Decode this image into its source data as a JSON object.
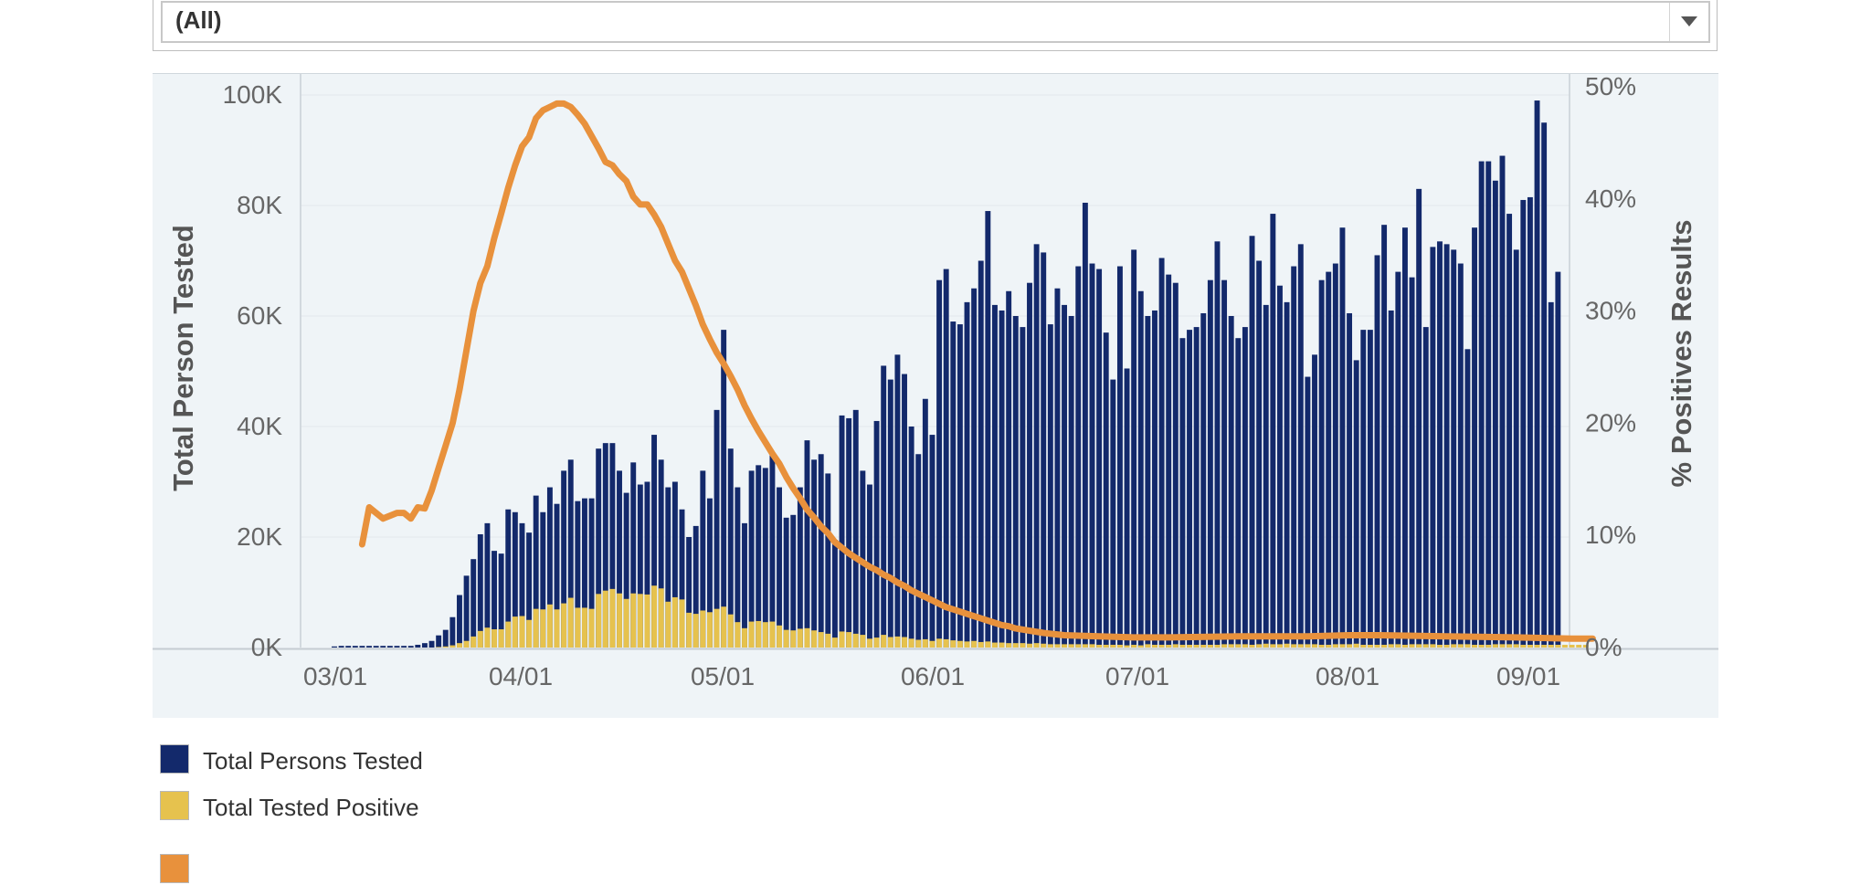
{
  "filter": {
    "value": "(All)",
    "icon": "chevron-down-icon"
  },
  "legend": [
    {
      "label": "Total Persons Tested",
      "color": "#13296b"
    },
    {
      "label": "Total Tested Positive",
      "color": "#e6c24e"
    },
    {
      "label": "",
      "color": "#e8913c"
    }
  ],
  "chart_data": {
    "type": "bar",
    "xlabel": "",
    "ylabel": "Total Person Tested",
    "y2label": "% Positives Results",
    "x_ticks": [
      "03/01",
      "04/01",
      "05/01",
      "06/01",
      "07/01",
      "08/01",
      "09/01"
    ],
    "y_ticks": [
      "0K",
      "20K",
      "40K",
      "60K",
      "80K",
      "100K"
    ],
    "y2_ticks": [
      "0%",
      "10%",
      "20%",
      "30%",
      "40%",
      "50%"
    ],
    "ylim": [
      0,
      100000
    ],
    "y2lim": [
      0,
      50
    ],
    "x_start": "03/01",
    "grid": true,
    "colors": {
      "tested": "#13296b",
      "positive": "#e6c24e",
      "rate": "#e8913c"
    },
    "series": [
      {
        "name": "Total Persons Tested",
        "kind": "bar",
        "values": [
          200,
          300,
          300,
          300,
          300,
          300,
          300,
          300,
          300,
          300,
          300,
          300,
          500,
          800,
          1200,
          2200,
          3200,
          5500,
          9500,
          13000,
          16000,
          20500,
          22500,
          17500,
          17000,
          25000,
          24500,
          22500,
          20800,
          27500,
          24500,
          29000,
          26000,
          32000,
          34000,
          26500,
          27000,
          27000,
          36000,
          37000,
          37000,
          32000,
          28000,
          33500,
          29500,
          30000,
          38500,
          34000,
          29000,
          30000,
          25000,
          20000,
          22000,
          32000,
          27000,
          43000,
          57500,
          36000,
          29000,
          22500,
          32000,
          33000,
          32500,
          35000,
          29000,
          23500,
          24000,
          29000,
          37500,
          34000,
          35000,
          31500,
          19500,
          42000,
          41500,
          43000,
          32000,
          29500,
          41000,
          51000,
          48500,
          53000,
          49500,
          40000,
          35000,
          45000,
          38500,
          66500,
          68500,
          59000,
          58500,
          62500,
          65000,
          70000,
          79000,
          62000,
          61000,
          64500,
          60000,
          58000,
          66000,
          73000,
          71500,
          58500,
          65000,
          62000,
          60000,
          69000,
          80500,
          69500,
          68500,
          57000,
          48500,
          69000,
          50500,
          72000,
          64500,
          60000,
          61000,
          70500,
          67500,
          66000,
          56000,
          57500,
          58000,
          60500,
          66500,
          73500,
          66500,
          60000,
          56000,
          58000,
          74500,
          70000,
          62000,
          78500,
          65500,
          62500,
          69000,
          73000,
          49000,
          53000,
          66500,
          68000,
          69500,
          76000,
          60500,
          52000,
          57500,
          57500,
          71000,
          76500,
          61000,
          68000,
          76000,
          67000,
          83000,
          58000,
          72500,
          73500,
          73000,
          72000,
          69500,
          54000,
          76000,
          88000,
          88000,
          84500,
          89000,
          78500,
          72000,
          81000,
          81500,
          99000,
          95000,
          62500,
          68000
        ]
      },
      {
        "name": "Total Tested Positive",
        "kind": "bar",
        "values": [
          0,
          0,
          0,
          0,
          0,
          0,
          0,
          0,
          0,
          0,
          0,
          0,
          0,
          0,
          0,
          100,
          200,
          400,
          800,
          1200,
          2000,
          3000,
          3600,
          3300,
          3300,
          4700,
          5600,
          5700,
          5000,
          7000,
          6900,
          7800,
          6900,
          8000,
          9000,
          7200,
          7200,
          7000,
          9700,
          10300,
          10600,
          9800,
          8800,
          9800,
          9700,
          9600,
          11200,
          10700,
          8300,
          9100,
          8700,
          6300,
          6100,
          6700,
          6400,
          7000,
          7400,
          6000,
          4600,
          3500,
          4700,
          4800,
          4600,
          4700,
          4000,
          3200,
          3100,
          3400,
          3500,
          3100,
          2800,
          2500,
          1800,
          2900,
          2800,
          2500,
          2300,
          1600,
          1800,
          2300,
          1900,
          2000,
          1900,
          1600,
          1400,
          1500,
          1200,
          1600,
          1500,
          1300,
          1200,
          1100,
          1200,
          1000,
          1100,
          900,
          900,
          800,
          800,
          800,
          700,
          800,
          700,
          600,
          600,
          600,
          600,
          600,
          600,
          600,
          500,
          500,
          500,
          500,
          400,
          500,
          400,
          600,
          500,
          500,
          500,
          600,
          500,
          500,
          500,
          500,
          500,
          500,
          600,
          600,
          600,
          600,
          500,
          600,
          700,
          600,
          600,
          700,
          600,
          600,
          600,
          600,
          500,
          500,
          600,
          600,
          600,
          700,
          500,
          500,
          500,
          500,
          600,
          600,
          500,
          600,
          600,
          600,
          600,
          500,
          500,
          600,
          600,
          600,
          500,
          500,
          500,
          600,
          600,
          600,
          600,
          500,
          500,
          500,
          500,
          500,
          500,
          500,
          500,
          500,
          500
        ]
      },
      {
        "name": "% Positives Results",
        "kind": "line",
        "axis": "right",
        "points": [
          [
            4,
            9.2
          ],
          [
            5,
            12.5
          ],
          [
            7,
            11.5
          ],
          [
            9,
            12
          ],
          [
            10,
            12
          ],
          [
            11,
            11.5
          ],
          [
            12,
            12.5
          ],
          [
            13,
            12.4
          ],
          [
            14,
            14
          ],
          [
            15,
            16
          ],
          [
            16,
            18
          ],
          [
            17,
            20
          ],
          [
            18,
            23
          ],
          [
            19,
            26.5
          ],
          [
            20,
            30
          ],
          [
            21,
            32.5
          ],
          [
            22,
            34
          ],
          [
            23,
            36.5
          ],
          [
            24,
            38.7
          ],
          [
            25,
            41
          ],
          [
            26,
            43
          ],
          [
            27,
            44.7
          ],
          [
            28,
            45.5
          ],
          [
            29,
            47.2
          ],
          [
            30,
            47.9
          ],
          [
            31,
            48.2
          ],
          [
            32,
            48.5
          ],
          [
            33,
            48.5
          ],
          [
            34,
            48.2
          ],
          [
            35,
            47.5
          ],
          [
            36,
            46.7
          ],
          [
            37,
            45.6
          ],
          [
            38,
            44.5
          ],
          [
            39,
            43.3
          ],
          [
            40,
            43
          ],
          [
            41,
            42.2
          ],
          [
            42,
            41.6
          ],
          [
            43,
            40.2
          ],
          [
            44,
            39.5
          ],
          [
            45,
            39.5
          ],
          [
            46,
            38.6
          ],
          [
            47,
            37.5
          ],
          [
            48,
            36
          ],
          [
            49,
            34.5
          ],
          [
            50,
            33.5
          ],
          [
            51,
            32
          ],
          [
            52,
            30.5
          ],
          [
            53,
            28.8
          ],
          [
            54,
            27.5
          ],
          [
            55,
            26.3
          ],
          [
            56,
            25.3
          ],
          [
            57,
            24.2
          ],
          [
            58,
            23
          ],
          [
            59,
            21.6
          ],
          [
            60,
            20.4
          ],
          [
            61,
            19.3
          ],
          [
            62,
            18.3
          ],
          [
            63,
            17.3
          ],
          [
            64,
            16.4
          ],
          [
            65,
            15.2
          ],
          [
            66,
            14.2
          ],
          [
            67,
            13.3
          ],
          [
            68,
            12.3
          ],
          [
            69,
            11.6
          ],
          [
            70,
            10.8
          ],
          [
            71,
            10.2
          ],
          [
            72,
            9.4
          ],
          [
            73,
            8.9
          ],
          [
            74,
            8.4
          ],
          [
            75,
            8
          ],
          [
            76,
            7.6
          ],
          [
            77,
            7.2
          ],
          [
            78,
            6.9
          ],
          [
            79,
            6.5
          ],
          [
            80,
            6.2
          ],
          [
            81,
            5.8
          ],
          [
            82,
            5.5
          ],
          [
            83,
            5.1
          ],
          [
            84,
            4.8
          ],
          [
            85,
            4.5
          ],
          [
            86,
            4.2
          ],
          [
            87,
            3.9
          ],
          [
            88,
            3.6
          ],
          [
            89,
            3.4
          ],
          [
            90,
            3.2
          ],
          [
            91,
            3
          ],
          [
            92,
            2.8
          ],
          [
            93,
            2.6
          ],
          [
            94,
            2.4
          ],
          [
            95,
            2.2
          ],
          [
            96,
            2
          ],
          [
            97,
            1.9
          ],
          [
            98,
            1.7
          ],
          [
            100,
            1.5
          ],
          [
            102,
            1.3
          ],
          [
            105,
            1.1
          ],
          [
            110,
            1
          ],
          [
            115,
            0.9
          ],
          [
            120,
            0.9
          ],
          [
            130,
            1
          ],
          [
            140,
            1
          ],
          [
            146,
            1.1
          ],
          [
            150,
            1.1
          ],
          [
            160,
            1
          ],
          [
            170,
            0.9
          ],
          [
            178,
            0.8
          ],
          [
            181,
            0.8
          ]
        ]
      }
    ]
  }
}
